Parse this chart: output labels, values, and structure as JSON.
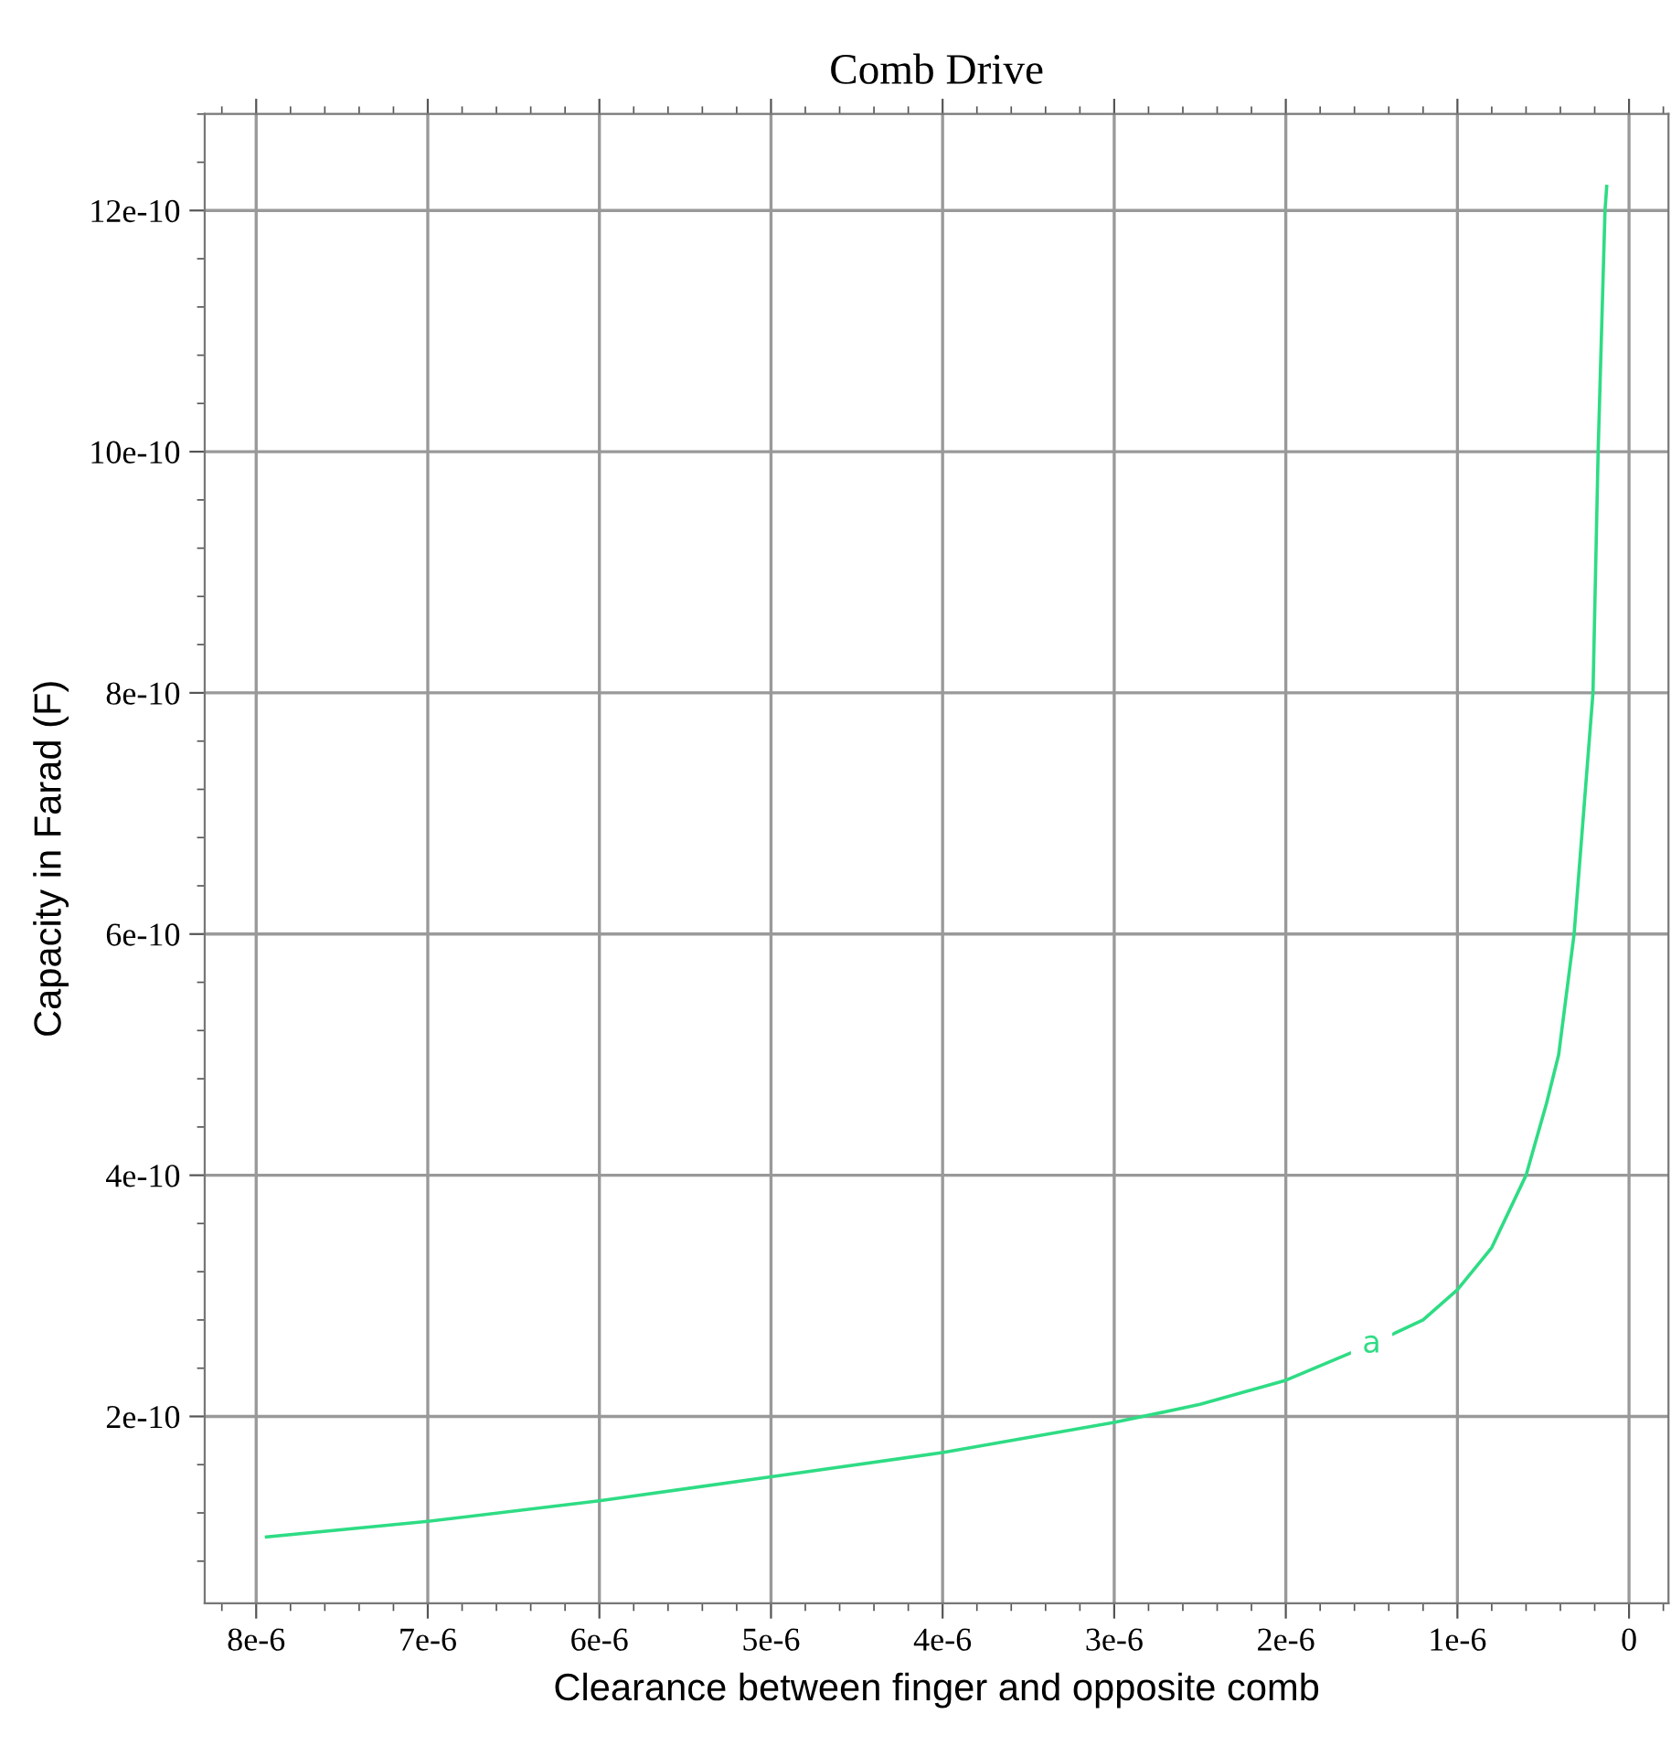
{
  "chart_data": {
    "type": "line",
    "title": "Comb Drive",
    "xlabel": "Clearance between finger and opposite comb",
    "ylabel": "Capacity in Farad (F)",
    "x": [
      7.94e-06,
      7e-06,
      6e-06,
      5e-06,
      4e-06,
      3e-06,
      2.5e-06,
      2e-06,
      1.5e-06,
      1.2e-06,
      1e-06,
      8e-07,
      6e-07,
      4.8e-07,
      4.1e-07,
      3.2e-07,
      2.1e-07,
      1.8e-07,
      1.4e-07,
      1.3e-07
    ],
    "series": [
      {
        "name": "a",
        "color": "#2edc84",
        "values": [
          1e-10,
          1.13e-10,
          1.3e-10,
          1.5e-10,
          1.7e-10,
          1.95e-10,
          2.1e-10,
          2.3e-10,
          2.6e-10,
          2.8e-10,
          3.05e-10,
          3.4e-10,
          4e-10,
          4.6e-10,
          5e-10,
          6e-10,
          8e-10,
          1e-09,
          1.2e-09,
          1.22e-09
        ]
      }
    ],
    "xlim": [
      8.3e-06,
      -2.3e-07
    ],
    "xticks": [
      {
        "value": 8e-06,
        "label": "8e-6"
      },
      {
        "value": 7e-06,
        "label": "7e-6"
      },
      {
        "value": 6e-06,
        "label": "6e-6"
      },
      {
        "value": 5e-06,
        "label": "5e-6"
      },
      {
        "value": 4e-06,
        "label": "4e-6"
      },
      {
        "value": 3e-06,
        "label": "3e-6"
      },
      {
        "value": 2e-06,
        "label": "2e-6"
      },
      {
        "value": 1e-06,
        "label": "1e-6"
      },
      0
    ],
    "ylim": [
      4.5e-11,
      1.28e-09
    ],
    "yticks": [
      {
        "value": 2e-10,
        "label": "2e-10"
      },
      {
        "value": 4e-10,
        "label": "4e-10"
      },
      {
        "value": 6e-10,
        "label": "6e-10"
      },
      {
        "value": 8e-10,
        "label": "8e-10"
      },
      {
        "value": 1e-09,
        "label": "10e-10"
      },
      {
        "value": 1.2e-09,
        "label": "12e-10"
      }
    ],
    "grid": true,
    "legend": false,
    "marker": "none",
    "line_style": "solid"
  }
}
